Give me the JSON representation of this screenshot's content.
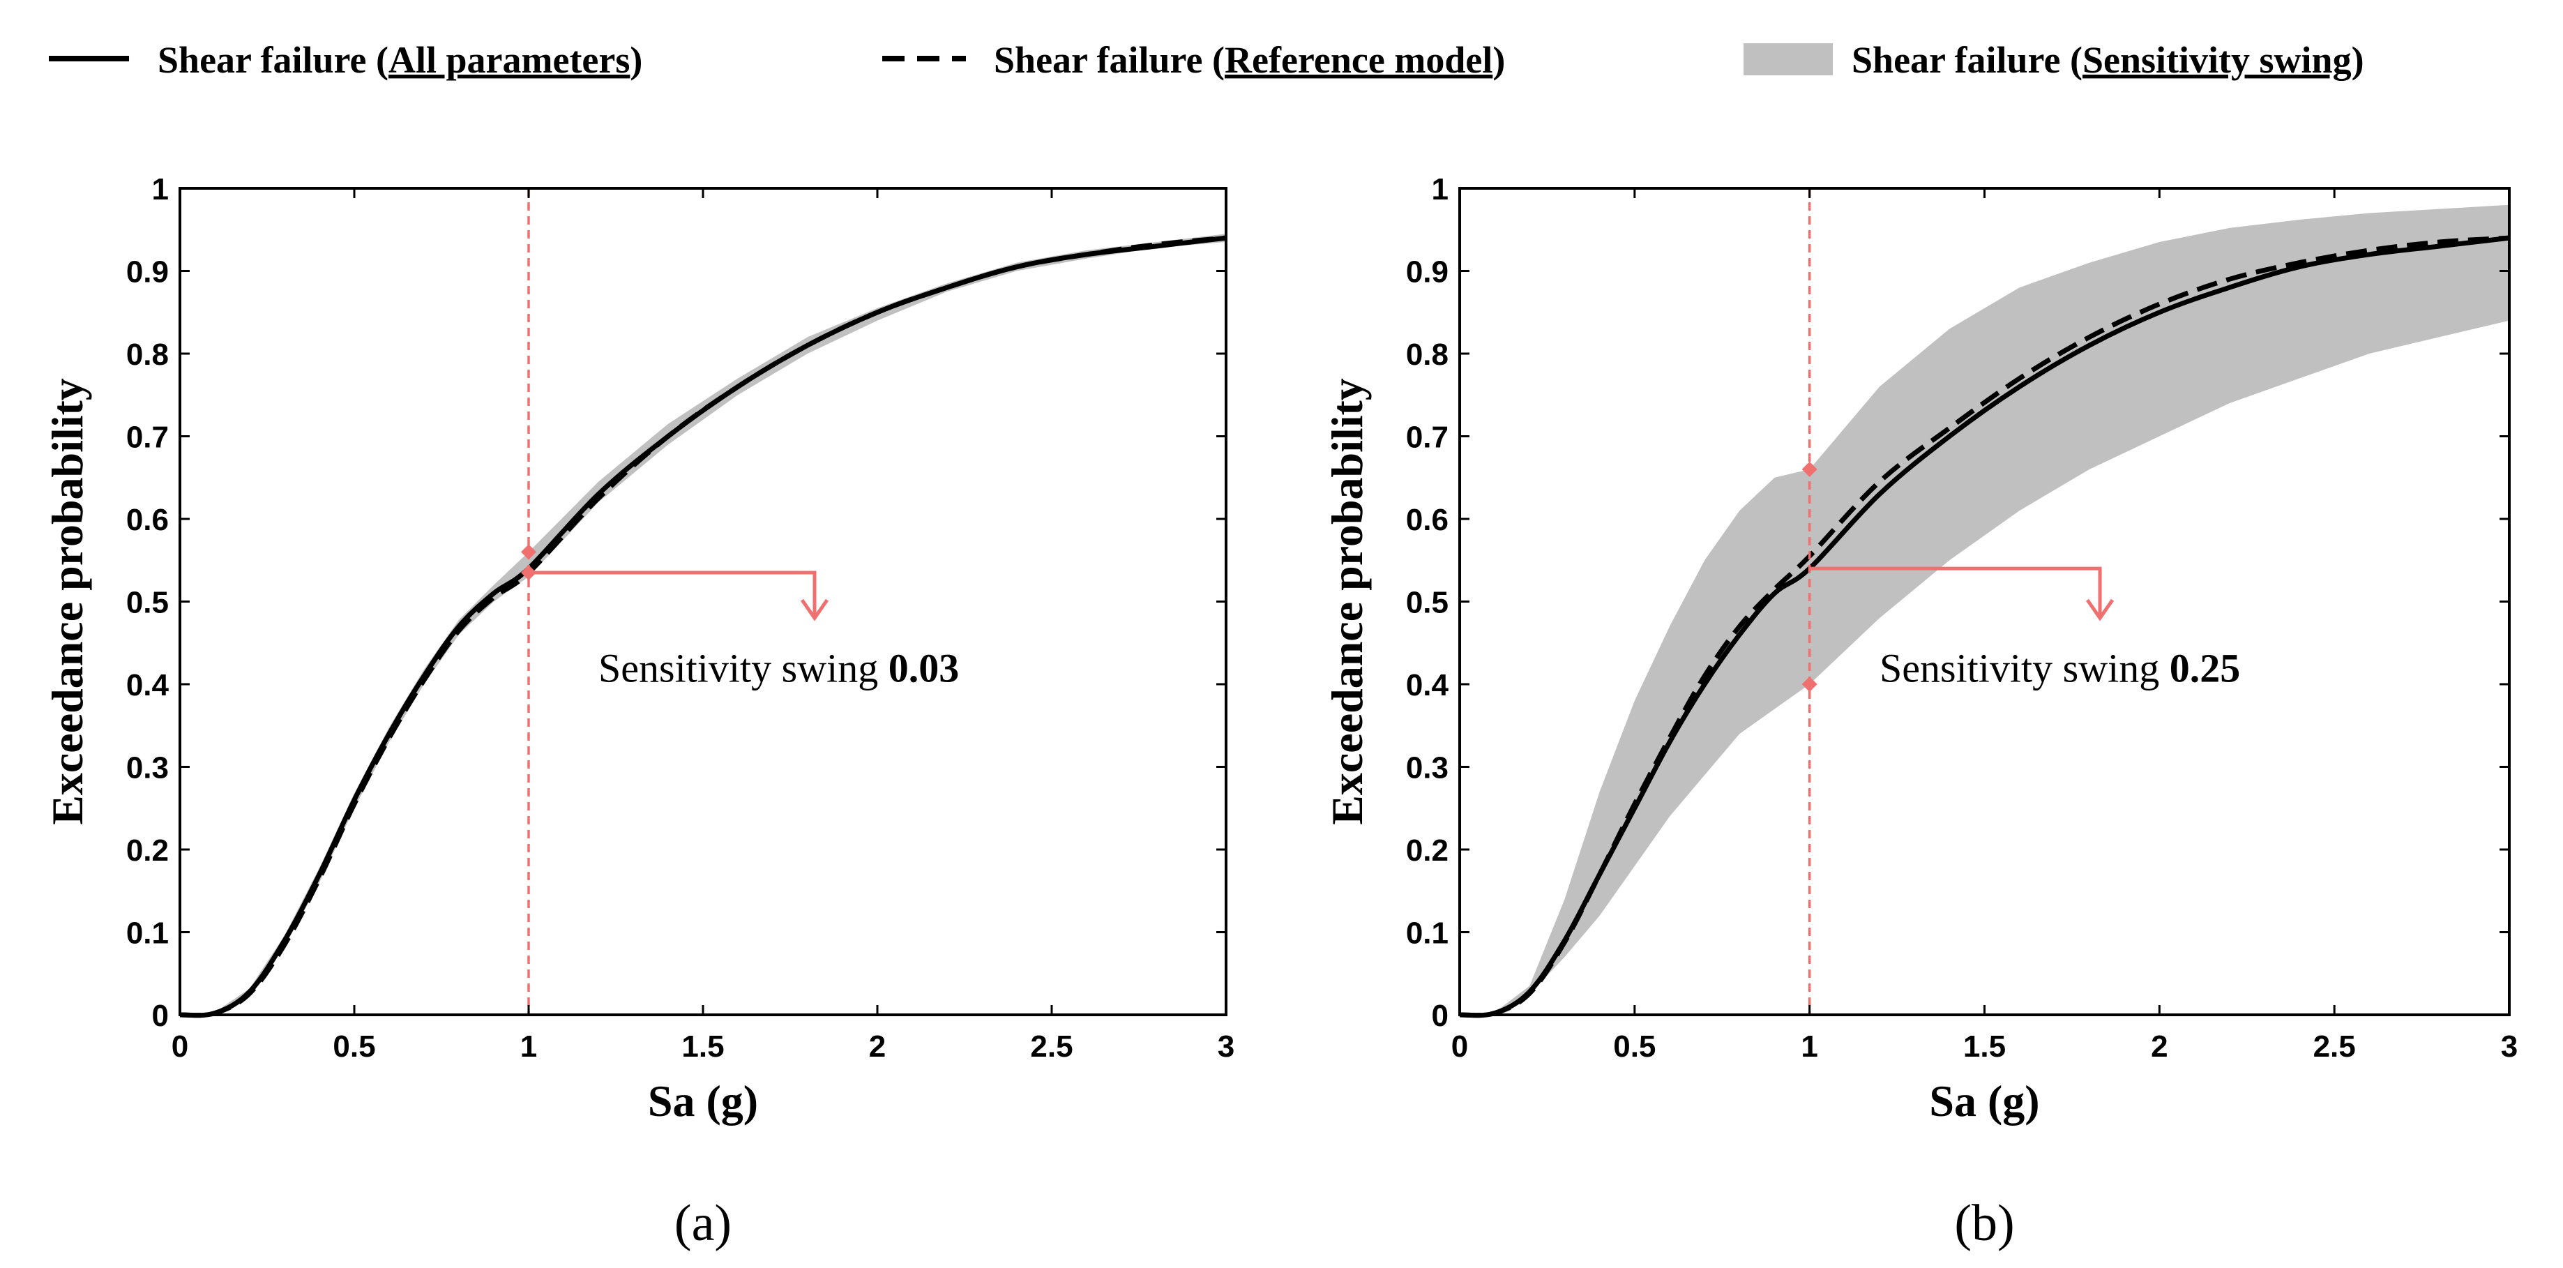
{
  "legend": {
    "items": [
      {
        "style": "solid",
        "prefix": "Shear failure (",
        "underlined": "All parameters",
        "suffix": ")"
      },
      {
        "style": "dashed",
        "prefix": "Shear failure (",
        "underlined": "Reference model",
        "suffix": ")"
      },
      {
        "style": "band",
        "prefix": "Shear failure (",
        "underlined": "Sensitivity swing",
        "suffix": ")"
      }
    ]
  },
  "colors": {
    "line": "#000000",
    "band": "#c0c0c0",
    "marker": "#f07070",
    "axis": "#000000"
  },
  "chart_data": [
    {
      "type": "line",
      "panel_label": "(a)",
      "xlabel": "Sa (g)",
      "ylabel": "Exceedance probability",
      "xlim": [
        0,
        3
      ],
      "ylim": [
        0,
        1
      ],
      "xticks": [
        0,
        0.5,
        1,
        1.5,
        2,
        2.5,
        3
      ],
      "xtick_labels": [
        "0",
        "0.5",
        "1",
        "1.5",
        "2",
        "2.5",
        "3"
      ],
      "yticks": [
        0,
        0.1,
        0.2,
        0.3,
        0.4,
        0.5,
        0.6,
        0.7,
        0.8,
        0.9,
        1
      ],
      "ytick_labels": [
        "0",
        "0.1",
        "0.2",
        "0.3",
        "0.4",
        "0.5",
        "0.6",
        "0.7",
        "0.8",
        "0.9",
        "1"
      ],
      "x": [
        0,
        0.1,
        0.2,
        0.3,
        0.4,
        0.5,
        0.6,
        0.7,
        0.8,
        0.9,
        1.0,
        1.2,
        1.4,
        1.6,
        1.8,
        2.0,
        2.2,
        2.4,
        2.6,
        2.8,
        3.0
      ],
      "series": [
        {
          "name": "Shear failure (All parameters)",
          "style": "solid",
          "values": [
            0,
            0.002,
            0.028,
            0.09,
            0.17,
            0.26,
            0.34,
            0.41,
            0.47,
            0.51,
            0.54,
            0.63,
            0.7,
            0.76,
            0.81,
            0.85,
            0.88,
            0.905,
            0.92,
            0.93,
            0.94
          ]
        },
        {
          "name": "Shear failure (Reference model)",
          "style": "dashed",
          "values": [
            0,
            0.002,
            0.026,
            0.085,
            0.165,
            0.255,
            0.335,
            0.405,
            0.465,
            0.505,
            0.535,
            0.625,
            0.7,
            0.76,
            0.81,
            0.85,
            0.88,
            0.905,
            0.92,
            0.932,
            0.94
          ]
        },
        {
          "name": "Shear failure (Sensitivity swing)",
          "style": "band",
          "lower": [
            0,
            0.002,
            0.024,
            0.082,
            0.16,
            0.25,
            0.33,
            0.4,
            0.46,
            0.5,
            0.53,
            0.62,
            0.69,
            0.75,
            0.8,
            0.84,
            0.875,
            0.9,
            0.915,
            0.928,
            0.935
          ],
          "upper": [
            0,
            0.003,
            0.032,
            0.096,
            0.178,
            0.268,
            0.348,
            0.418,
            0.478,
            0.52,
            0.56,
            0.645,
            0.715,
            0.77,
            0.82,
            0.855,
            0.885,
            0.91,
            0.925,
            0.935,
            0.945
          ]
        }
      ],
      "marker_x": 1,
      "markers": [
        0.56,
        0.535
      ],
      "arrow": {
        "y": 0.535,
        "to_x": 1.82,
        "to_y": 0.48
      },
      "annotation": {
        "text": "Sensitivity swing ",
        "value": "0.03",
        "x": 1.2,
        "y": 0.42
      }
    },
    {
      "type": "line",
      "panel_label": "(b)",
      "xlabel": "Sa (g)",
      "ylabel": "Exceedance probability",
      "xlim": [
        0,
        3
      ],
      "ylim": [
        0,
        1
      ],
      "xticks": [
        0,
        0.5,
        1,
        1.5,
        2,
        2.5,
        3
      ],
      "xtick_labels": [
        "0",
        "0.5",
        "1",
        "1.5",
        "2",
        "2.5",
        "3"
      ],
      "yticks": [
        0,
        0.1,
        0.2,
        0.3,
        0.4,
        0.5,
        0.6,
        0.7,
        0.8,
        0.9,
        1
      ],
      "ytick_labels": [
        "0",
        "0.1",
        "0.2",
        "0.3",
        "0.4",
        "0.5",
        "0.6",
        "0.7",
        "0.8",
        "0.9",
        "1"
      ],
      "x": [
        0,
        0.1,
        0.2,
        0.3,
        0.4,
        0.5,
        0.6,
        0.7,
        0.8,
        0.9,
        1.0,
        1.2,
        1.4,
        1.6,
        1.8,
        2.0,
        2.2,
        2.4,
        2.6,
        2.8,
        3.0
      ],
      "series": [
        {
          "name": "Shear failure (All parameters)",
          "style": "solid",
          "values": [
            0,
            0.002,
            0.028,
            0.09,
            0.17,
            0.25,
            0.33,
            0.4,
            0.46,
            0.51,
            0.54,
            0.63,
            0.7,
            0.76,
            0.81,
            0.85,
            0.88,
            0.905,
            0.92,
            0.93,
            0.94
          ]
        },
        {
          "name": "Shear failure (Reference model)",
          "style": "dashed",
          "values": [
            0,
            0.002,
            0.026,
            0.088,
            0.17,
            0.255,
            0.335,
            0.41,
            0.47,
            0.515,
            0.555,
            0.645,
            0.71,
            0.77,
            0.82,
            0.86,
            0.89,
            0.91,
            0.925,
            0.935,
            0.94
          ]
        },
        {
          "name": "Shear failure (Sensitivity swing)",
          "style": "band",
          "lower": [
            0,
            0.002,
            0.025,
            0.07,
            0.12,
            0.18,
            0.24,
            0.29,
            0.34,
            0.37,
            0.4,
            0.48,
            0.55,
            0.61,
            0.66,
            0.7,
            0.74,
            0.77,
            0.8,
            0.82,
            0.84
          ],
          "upper": [
            0,
            0.003,
            0.035,
            0.14,
            0.27,
            0.38,
            0.47,
            0.55,
            0.61,
            0.65,
            0.66,
            0.76,
            0.83,
            0.88,
            0.91,
            0.935,
            0.952,
            0.962,
            0.97,
            0.975,
            0.98
          ]
        }
      ],
      "marker_x": 1,
      "markers": [
        0.66,
        0.4
      ],
      "arrow": {
        "y": 0.54,
        "to_x": 1.83,
        "to_y": 0.48
      },
      "annotation": {
        "text": "Sensitivity swing ",
        "value": "0.25",
        "x": 1.2,
        "y": 0.42
      }
    }
  ]
}
